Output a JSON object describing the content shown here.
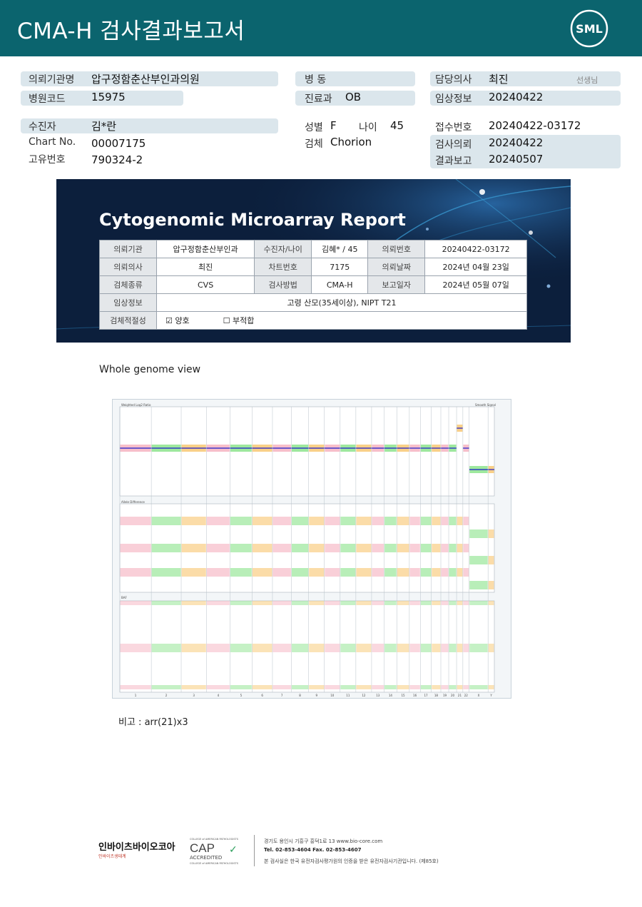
{
  "header": {
    "title": "CMA-H 검사결과보고서",
    "logo_text": "SML"
  },
  "info": {
    "institution_label": "의뢰기관명",
    "institution_value": "압구정함춘산부인과의원",
    "ward_label": "병  동",
    "ward_value": "",
    "doctor_label": "담당의사",
    "doctor_value": "최진",
    "doctor_suffix": "선생님",
    "hospital_code_label": "병원코드",
    "hospital_code_value": "15975",
    "dept_label": "진료과",
    "dept_value": "OB",
    "clinical_label": "임상정보",
    "clinical_value": "20240422",
    "patient_label": "수진자",
    "patient_value": "김*란",
    "sex_label": "성별",
    "sex_value": "F",
    "age_label": "나이",
    "age_value": "45",
    "receipt_label": "접수번호",
    "receipt_value": "20240422-03172",
    "chart_label": "Chart No.",
    "chart_value": "00007175",
    "specimen_label": "검체",
    "specimen_value": "Chorion",
    "request_label": "검사의뢰",
    "request_value": "20240422",
    "id_label": "고유번호",
    "id_value": "790324-2",
    "report_label": "결과보고",
    "report_value": "20240507"
  },
  "report": {
    "title": "Cytogenomic Microarray Report",
    "rows": [
      [
        "의뢰기관",
        "압구정함춘산부인과",
        "수진자/나이",
        "김혜* / 45",
        "의뢰번호",
        "20240422-03172"
      ],
      [
        "의뢰의사",
        "최진",
        "차트번호",
        "7175",
        "의뢰날짜",
        "2024년 04월 23일"
      ],
      [
        "검체종류",
        "CVS",
        "검사방법",
        "CMA-H",
        "보고일자",
        "2024년 05월 07일"
      ]
    ],
    "clinical_label": "임상정보",
    "clinical_value": "고령 산모(35세이상), NIPT T21",
    "adequacy_label": "검체적절성",
    "adequacy_ok": "양호",
    "adequacy_bad": "부적합"
  },
  "genome": {
    "section_title": "Whole genome view",
    "panel1_label": "Weighted Log2 Ratio",
    "panel1_right_label": "Smooth Signal",
    "panel2_label": "Allele Difference",
    "panel3_label": "BAF",
    "chromosomes": [
      "1",
      "2",
      "3",
      "4",
      "5",
      "6",
      "7",
      "8",
      "9",
      "10",
      "11",
      "12",
      "13",
      "14",
      "15",
      "16",
      "17",
      "18",
      "19",
      "20",
      "21",
      "22",
      "X",
      "Y"
    ],
    "colors": {
      "pink": "#f4a8b8",
      "green": "#7ee07e",
      "orange": "#f7c060",
      "line": "#1a1acc"
    }
  },
  "remark": "비고 : arr(21)x3",
  "footer": {
    "company": "인바이츠바이오코아",
    "company_sub": "인바이츠생태계",
    "cap_top": "COLLEGE of AMERICAN PATHOLOGISTS",
    "cap": "CAP",
    "cap_accredited": "ACCREDITED",
    "cap_bottom": "COLLEGE of AMERICAN PATHOLOGISTS",
    "address": "경기도 용인시 기흥구 흥덕1로 13   www.bio-core.com",
    "tel": "Tel. 02-853-4604   Fax. 02-853-4607",
    "cert": "본 검사실은 한국 유전자검사평가원의 인증을 받은 유전자검사기관입니다. (제85호)"
  }
}
